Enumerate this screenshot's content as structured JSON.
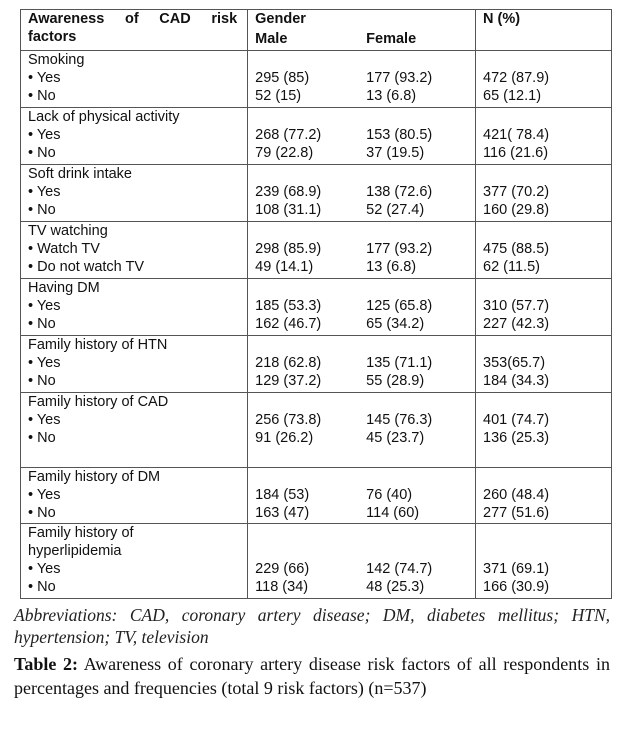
{
  "header": {
    "col1_line1": "Awareness of CAD risk",
    "col1_line2": "factors",
    "gender": "Gender",
    "male": "Male",
    "female": "Female",
    "total": "N (%)"
  },
  "groups": [
    {
      "title": [
        "Smoking"
      ],
      "rows": [
        {
          "label": "• Yes",
          "male": "295 (85)",
          "female": "177 (93.2)",
          "total": "472 (87.9)"
        },
        {
          "label": "• No",
          "male": "52 (15)",
          "female": "13 (6.8)",
          "total": "65 (12.1)"
        }
      ]
    },
    {
      "title": [
        "Lack of physical activity"
      ],
      "rows": [
        {
          "label": "• Yes",
          "male": "268 (77.2)",
          "female": "153 (80.5)",
          "total": "421( 78.4)"
        },
        {
          "label": "• No",
          "male": "79 (22.8)",
          "female": "37 (19.5)",
          "total": "116 (21.6)"
        }
      ]
    },
    {
      "title": [
        "Soft drink intake"
      ],
      "rows": [
        {
          "label": "• Yes",
          "male": "239 (68.9)",
          "female": "138 (72.6)",
          "total": "377 (70.2)"
        },
        {
          "label": "• No",
          "male": "108 (31.1)",
          "female": "52 (27.4)",
          "total": "160 (29.8)"
        }
      ]
    },
    {
      "title": [
        "TV watching"
      ],
      "rows": [
        {
          "label": "• Watch TV",
          "male": "298 (85.9)",
          "female": "177 (93.2)",
          "total": "475 (88.5)"
        },
        {
          "label": "• Do not watch TV",
          "male": "49 (14.1)",
          "female": "13 (6.8)",
          "total": "62 (11.5)"
        }
      ]
    },
    {
      "title": [
        "Having DM"
      ],
      "rows": [
        {
          "label": "• Yes",
          "male": "185 (53.3)",
          "female": "125 (65.8)",
          "total": "310 (57.7)"
        },
        {
          "label": "• No",
          "male": "162 (46.7)",
          "female": "65 (34.2)",
          "total": "227 (42.3)"
        }
      ]
    },
    {
      "title": [
        "Family history of HTN"
      ],
      "rows": [
        {
          "label": "• Yes",
          "male": "218 (62.8)",
          "female": "135 (71.1)",
          "total": "353(65.7)"
        },
        {
          "label": "• No",
          "male": "129 (37.2)",
          "female": "55 (28.9)",
          "total": "184 (34.3)"
        }
      ]
    },
    {
      "title": [
        "Family history of CAD"
      ],
      "rows": [
        {
          "label": "• Yes",
          "male": "256 (73.8)",
          "female": "145 (76.3)",
          "total": "401 (74.7)"
        },
        {
          "label": "• No",
          "male": "91 (26.2)",
          "female": "45 (23.7)",
          "total": "136 (25.3)"
        }
      ]
    },
    {
      "title": [
        "Family history of DM"
      ],
      "rows": [
        {
          "label": "• Yes",
          "male": "184 (53)",
          "female": "76 (40)",
          "total": "260 (48.4)"
        },
        {
          "label": "• No",
          "male": "163 (47)",
          "female": "114 (60)",
          "total": "277 (51.6)"
        }
      ]
    },
    {
      "title": [
        "Family history of",
        "hyperlipidemia"
      ],
      "rows": [
        {
          "label": "• Yes",
          "male": "229 (66)",
          "female": "142 (74.7)",
          "total": "371 (69.1)"
        },
        {
          "label": "• No",
          "male": "118 (34)",
          "female": "48 (25.3)",
          "total": "166 (30.9)"
        }
      ]
    }
  ],
  "abbreviations": "Abbreviations: CAD, coronary artery disease; DM, diabetes mellitus; HTN, hypertension; TV, television",
  "caption": {
    "label": "Table 2:",
    "text": " Awareness of coronary artery disease risk factors of all respondents in percentages and frequencies (total 9 risk factors) (n=537)"
  }
}
